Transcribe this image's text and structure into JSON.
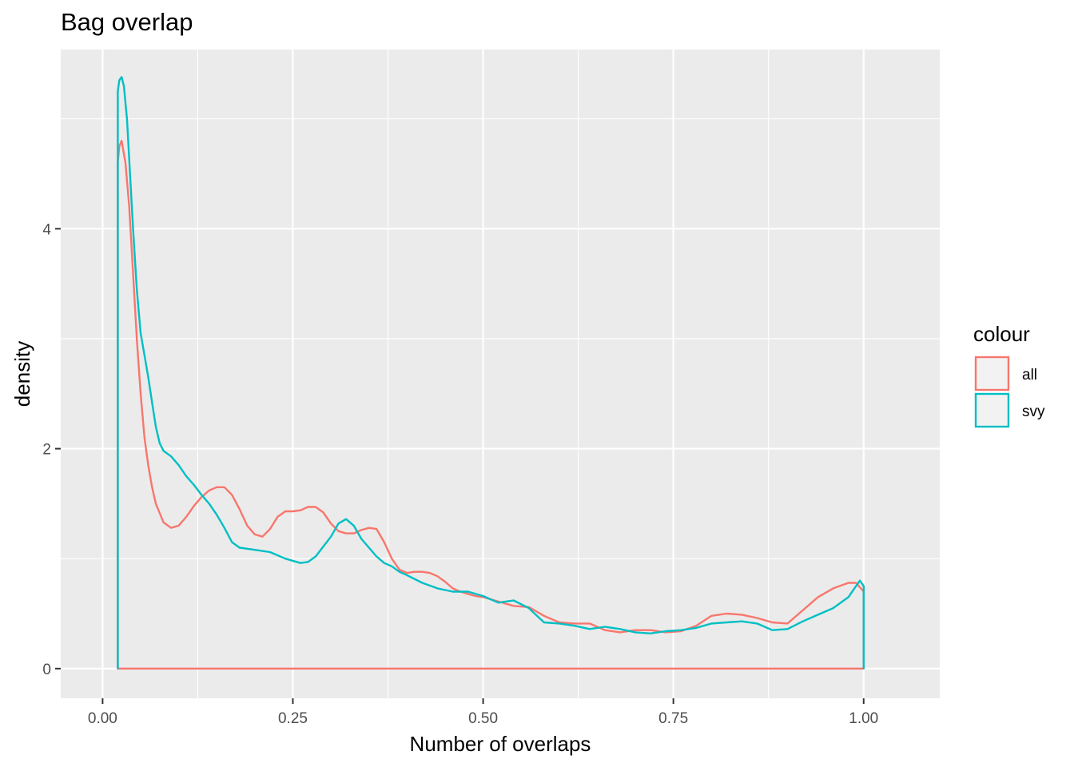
{
  "chart_data": {
    "type": "line",
    "title": "Bag overlap",
    "xlabel": "Number of overlaps",
    "ylabel": "density",
    "xlim": [
      -0.055,
      1.1
    ],
    "ylim": [
      -0.27,
      5.63
    ],
    "x_ticks": [
      0.0,
      0.25,
      0.5,
      0.75,
      1.0
    ],
    "x_tick_labels": [
      "0.00",
      "0.25",
      "0.50",
      "0.75",
      "1.00"
    ],
    "y_ticks": [
      0,
      2,
      4
    ],
    "y_tick_labels": [
      "0",
      "2",
      "4"
    ],
    "grid": true,
    "legend": {
      "title": "colour",
      "position": "right",
      "entries": [
        "all",
        "svy"
      ]
    },
    "series": [
      {
        "name": "all",
        "color": "#F8766D",
        "x": [
          0.02,
          0.02,
          0.022,
          0.025,
          0.03,
          0.035,
          0.04,
          0.045,
          0.05,
          0.055,
          0.06,
          0.065,
          0.07,
          0.08,
          0.09,
          0.1,
          0.11,
          0.12,
          0.13,
          0.14,
          0.15,
          0.16,
          0.17,
          0.18,
          0.19,
          0.2,
          0.21,
          0.22,
          0.23,
          0.24,
          0.25,
          0.26,
          0.27,
          0.28,
          0.29,
          0.3,
          0.31,
          0.32,
          0.33,
          0.34,
          0.35,
          0.36,
          0.37,
          0.38,
          0.39,
          0.4,
          0.41,
          0.42,
          0.43,
          0.44,
          0.45,
          0.46,
          0.47,
          0.48,
          0.49,
          0.5,
          0.52,
          0.54,
          0.56,
          0.58,
          0.6,
          0.62,
          0.64,
          0.66,
          0.68,
          0.7,
          0.72,
          0.74,
          0.76,
          0.78,
          0.8,
          0.82,
          0.84,
          0.86,
          0.88,
          0.9,
          0.92,
          0.94,
          0.96,
          0.98,
          0.99,
          1.0,
          1.0,
          0.02
        ],
        "y": [
          0,
          4.6,
          4.75,
          4.8,
          4.6,
          4.2,
          3.6,
          3.0,
          2.5,
          2.1,
          1.85,
          1.65,
          1.5,
          1.33,
          1.28,
          1.3,
          1.38,
          1.48,
          1.56,
          1.62,
          1.65,
          1.65,
          1.58,
          1.45,
          1.3,
          1.22,
          1.2,
          1.27,
          1.38,
          1.43,
          1.43,
          1.44,
          1.47,
          1.47,
          1.42,
          1.32,
          1.25,
          1.23,
          1.23,
          1.26,
          1.28,
          1.27,
          1.15,
          1.0,
          0.9,
          0.87,
          0.88,
          0.88,
          0.87,
          0.84,
          0.79,
          0.73,
          0.7,
          0.68,
          0.66,
          0.65,
          0.61,
          0.57,
          0.56,
          0.48,
          0.42,
          0.41,
          0.41,
          0.35,
          0.33,
          0.35,
          0.35,
          0.33,
          0.34,
          0.39,
          0.48,
          0.5,
          0.49,
          0.46,
          0.42,
          0.41,
          0.53,
          0.65,
          0.73,
          0.78,
          0.78,
          0.7,
          0,
          0
        ]
      },
      {
        "name": "svy",
        "color": "#00BFC4",
        "x": [
          0.02,
          0.02,
          0.022,
          0.025,
          0.028,
          0.032,
          0.036,
          0.04,
          0.045,
          0.05,
          0.055,
          0.06,
          0.065,
          0.07,
          0.075,
          0.08,
          0.09,
          0.1,
          0.11,
          0.12,
          0.13,
          0.14,
          0.15,
          0.16,
          0.17,
          0.18,
          0.19,
          0.2,
          0.22,
          0.24,
          0.26,
          0.27,
          0.28,
          0.3,
          0.31,
          0.32,
          0.33,
          0.34,
          0.36,
          0.37,
          0.38,
          0.39,
          0.4,
          0.42,
          0.44,
          0.46,
          0.48,
          0.5,
          0.52,
          0.54,
          0.56,
          0.58,
          0.6,
          0.62,
          0.64,
          0.66,
          0.68,
          0.7,
          0.72,
          0.74,
          0.76,
          0.78,
          0.8,
          0.82,
          0.84,
          0.86,
          0.88,
          0.9,
          0.92,
          0.94,
          0.96,
          0.98,
          0.99,
          0.995,
          1.0,
          1.0
        ],
        "y": [
          0,
          5.25,
          5.35,
          5.38,
          5.3,
          5.0,
          4.5,
          4.0,
          3.45,
          3.05,
          2.85,
          2.65,
          2.42,
          2.2,
          2.05,
          1.98,
          1.93,
          1.85,
          1.75,
          1.67,
          1.58,
          1.5,
          1.4,
          1.28,
          1.15,
          1.1,
          1.09,
          1.08,
          1.06,
          1.0,
          0.96,
          0.97,
          1.02,
          1.2,
          1.32,
          1.36,
          1.3,
          1.18,
          1.02,
          0.96,
          0.93,
          0.88,
          0.85,
          0.78,
          0.73,
          0.7,
          0.7,
          0.66,
          0.6,
          0.62,
          0.55,
          0.42,
          0.41,
          0.39,
          0.36,
          0.38,
          0.36,
          0.33,
          0.32,
          0.34,
          0.35,
          0.37,
          0.41,
          0.42,
          0.43,
          0.41,
          0.35,
          0.36,
          0.43,
          0.49,
          0.55,
          0.65,
          0.75,
          0.8,
          0.75,
          0
        ]
      }
    ]
  }
}
